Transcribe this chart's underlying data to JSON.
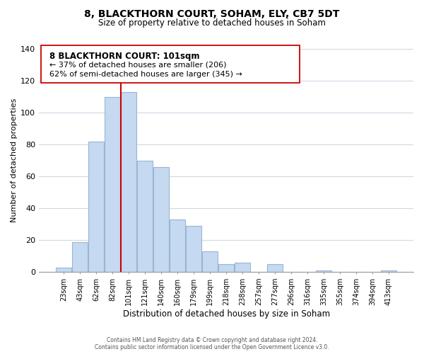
{
  "title": "8, BLACKTHORN COURT, SOHAM, ELY, CB7 5DT",
  "subtitle": "Size of property relative to detached houses in Soham",
  "xlabel": "Distribution of detached houses by size in Soham",
  "ylabel": "Number of detached properties",
  "bar_labels": [
    "23sqm",
    "43sqm",
    "62sqm",
    "82sqm",
    "101sqm",
    "121sqm",
    "140sqm",
    "160sqm",
    "179sqm",
    "199sqm",
    "218sqm",
    "238sqm",
    "257sqm",
    "277sqm",
    "296sqm",
    "316sqm",
    "335sqm",
    "355sqm",
    "374sqm",
    "394sqm",
    "413sqm"
  ],
  "bar_values": [
    3,
    19,
    82,
    110,
    113,
    70,
    66,
    33,
    29,
    13,
    5,
    6,
    0,
    5,
    0,
    0,
    1,
    0,
    0,
    0,
    1
  ],
  "bar_color": "#c5d9f1",
  "bar_edge_color": "#9ab5d4",
  "vline_color": "#cc0000",
  "vline_index": 4,
  "ylim": [
    0,
    140
  ],
  "yticks": [
    0,
    20,
    40,
    60,
    80,
    100,
    120,
    140
  ],
  "annotation_title": "8 BLACKTHORN COURT: 101sqm",
  "annotation_line1": "← 37% of detached houses are smaller (206)",
  "annotation_line2": "62% of semi-detached houses are larger (345) →",
  "footer_line1": "Contains HM Land Registry data © Crown copyright and database right 2024.",
  "footer_line2": "Contains public sector information licensed under the Open Government Licence v3.0.",
  "bg_color": "#ffffff",
  "grid_color": "#d0d8e4"
}
